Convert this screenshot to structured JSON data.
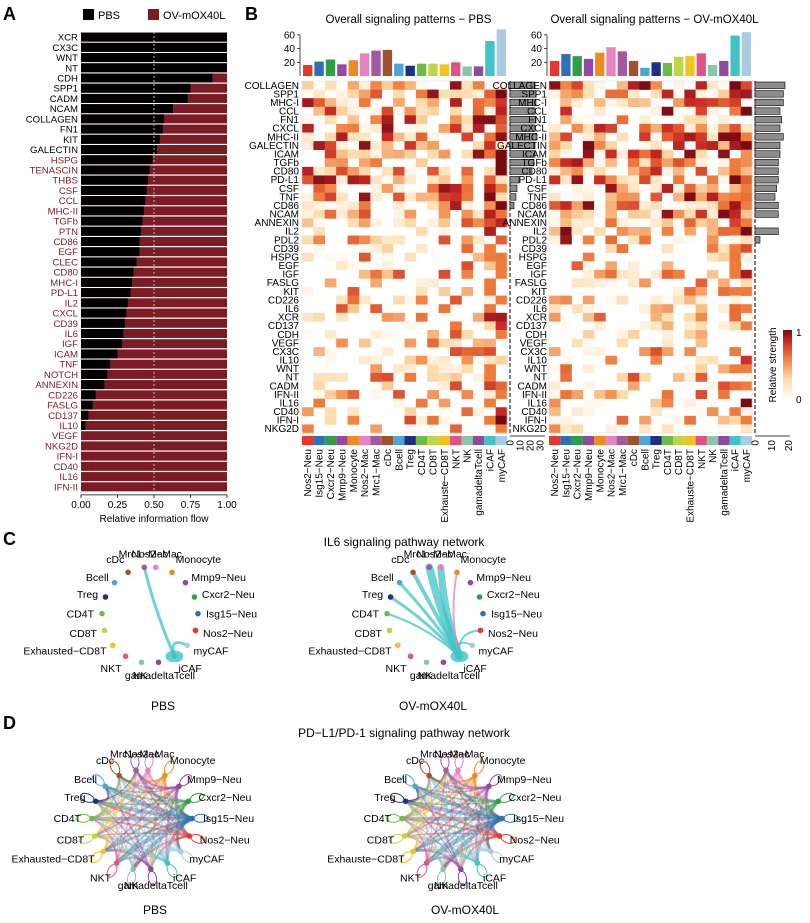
{
  "panelA": {
    "letter": "A",
    "legend": [
      {
        "label": "PBS",
        "color": "#000000"
      },
      {
        "label": "OV-mOX40L",
        "color": "#7b1c24"
      }
    ],
    "rows": [
      {
        "name": "XCR",
        "pbs": 1.0,
        "pbsLabel": true
      },
      {
        "name": "CX3C",
        "pbs": 1.0,
        "pbsLabel": true
      },
      {
        "name": "WNT",
        "pbs": 1.0,
        "pbsLabel": true
      },
      {
        "name": "NT",
        "pbs": 1.0,
        "pbsLabel": true
      },
      {
        "name": "CDH",
        "pbs": 0.9,
        "pbsLabel": true
      },
      {
        "name": "SPP1",
        "pbs": 0.75,
        "pbsLabel": true
      },
      {
        "name": "CADM",
        "pbs": 0.73,
        "pbsLabel": true
      },
      {
        "name": "NCAM",
        "pbs": 0.63,
        "pbsLabel": true
      },
      {
        "name": "COLLAGEN",
        "pbs": 0.57,
        "pbsLabel": true
      },
      {
        "name": "FN1",
        "pbs": 0.56,
        "pbsLabel": true
      },
      {
        "name": "KIT",
        "pbs": 0.54,
        "pbsLabel": true
      },
      {
        "name": "GALECTIN",
        "pbs": 0.52,
        "pbsLabel": true
      },
      {
        "name": "HSPG",
        "pbs": 0.49,
        "pbsLabel": false
      },
      {
        "name": "TENASCIN",
        "pbs": 0.47,
        "pbsLabel": false
      },
      {
        "name": "THBS",
        "pbs": 0.46,
        "pbsLabel": false
      },
      {
        "name": "CSF",
        "pbs": 0.45,
        "pbsLabel": false
      },
      {
        "name": "CCL",
        "pbs": 0.44,
        "pbsLabel": false
      },
      {
        "name": "MHC-II",
        "pbs": 0.43,
        "pbsLabel": false
      },
      {
        "name": "TGFb",
        "pbs": 0.42,
        "pbsLabel": false
      },
      {
        "name": "PTN",
        "pbs": 0.41,
        "pbsLabel": false
      },
      {
        "name": "CD86",
        "pbs": 0.4,
        "pbsLabel": false
      },
      {
        "name": "EGF",
        "pbs": 0.4,
        "pbsLabel": false
      },
      {
        "name": "CLEC",
        "pbs": 0.38,
        "pbsLabel": false
      },
      {
        "name": "CD80",
        "pbs": 0.36,
        "pbsLabel": false
      },
      {
        "name": "MHC-I",
        "pbs": 0.35,
        "pbsLabel": false
      },
      {
        "name": "PD-L1",
        "pbs": 0.34,
        "pbsLabel": false
      },
      {
        "name": "IL2",
        "pbs": 0.32,
        "pbsLabel": false
      },
      {
        "name": "CXCL",
        "pbs": 0.31,
        "pbsLabel": false
      },
      {
        "name": "CD39",
        "pbs": 0.3,
        "pbsLabel": false
      },
      {
        "name": "IL6",
        "pbs": 0.29,
        "pbsLabel": false
      },
      {
        "name": "IGF",
        "pbs": 0.28,
        "pbsLabel": false
      },
      {
        "name": "ICAM",
        "pbs": 0.25,
        "pbsLabel": false
      },
      {
        "name": "TNF",
        "pbs": 0.2,
        "pbsLabel": false
      },
      {
        "name": "NOTCH",
        "pbs": 0.18,
        "pbsLabel": false
      },
      {
        "name": "ANNEXIN",
        "pbs": 0.16,
        "pbsLabel": false
      },
      {
        "name": "CD226",
        "pbs": 0.1,
        "pbsLabel": false
      },
      {
        "name": "FASLG",
        "pbs": 0.08,
        "pbsLabel": false
      },
      {
        "name": "CD137",
        "pbs": 0.05,
        "pbsLabel": false
      },
      {
        "name": "IL10",
        "pbs": 0.03,
        "pbsLabel": false
      },
      {
        "name": "VEGF",
        "pbs": 0.0,
        "pbsLabel": false
      },
      {
        "name": "NKG2D",
        "pbs": 0.0,
        "pbsLabel": false
      },
      {
        "name": "IFN-I",
        "pbs": 0.0,
        "pbsLabel": false
      },
      {
        "name": "CD40",
        "pbs": 0.0,
        "pbsLabel": false
      },
      {
        "name": "IL16",
        "pbs": 0.0,
        "pbsLabel": false
      },
      {
        "name": "IFN-II",
        "pbs": 0.0,
        "pbsLabel": false
      }
    ],
    "xticks": [
      "0.00",
      "0.25",
      "0.50",
      "0.75",
      "1.00"
    ],
    "xlabel": "Relative information flow"
  },
  "panelB": {
    "letter": "B",
    "titles": [
      "Overall signaling patterns − PBS",
      "Overall signaling patterns − OV-mOX40L"
    ],
    "pathways": [
      "COLLAGEN",
      "SPP1",
      "MHC-I",
      "CCL",
      "FN1",
      "CXCL",
      "MHC-II",
      "GALECTIN",
      "ICAM",
      "TGFb",
      "CD80",
      "PD-L1",
      "CSF",
      "TNF",
      "CD86",
      "NCAM",
      "ANNEXIN",
      "IL2",
      "PDL2",
      "CD39",
      "HSPG",
      "EGF",
      "IGF",
      "FASLG",
      "KIT",
      "CD226",
      "IL6",
      "XCR",
      "CD137",
      "CDH",
      "VEGF",
      "CX3C",
      "IL10",
      "WNT",
      "NT",
      "CADM",
      "IFN-II",
      "IL16",
      "CD40",
      "IFN-I",
      "NKG2D"
    ],
    "cellsPBS": [
      "Nos2−Neu",
      "Isg15−Neu",
      "Cxcr2−Neu",
      "Mmp9−Neu",
      "Monocyte",
      "Nos2−Mac",
      "Mrc1−Mac",
      "cDc",
      "Bcell",
      "Treg",
      "CD4T",
      "CD8T",
      "Exhauste−CD8T",
      "NKT",
      "NK",
      "gamadeltaTcell",
      "iCAF",
      "myCAF"
    ],
    "cellsOV": [
      "Nos2−Neu",
      "Isg15−Neu",
      "Cxcr2−Neu",
      "Mmp9−Neu",
      "Monocyte",
      "Nos2−Mac",
      "Mrc1−Mac",
      "cDc",
      "Bcell",
      "Treg",
      "CD4T",
      "CD8T",
      "Exhauste−CD8T",
      "NKT",
      "NK",
      "gamadeltaTcell",
      "iCAF",
      "myCAF"
    ],
    "cellColors": [
      "#e8362d",
      "#2f6fb3",
      "#2e9e48",
      "#9447a3",
      "#f08a1f",
      "#e882c0",
      "#a4589e",
      "#a0522d",
      "#4da6d8",
      "#1f2f86",
      "#6cbd45",
      "#bfd548",
      "#f3c21e",
      "#e25286",
      "#87c6a8",
      "#8f4a9e",
      "#40c3c4",
      "#a9cce3"
    ],
    "topBarsPBS": [
      16,
      21,
      24,
      17,
      23,
      33,
      37,
      38,
      18,
      15,
      18,
      18,
      17,
      20,
      14,
      14,
      51,
      68
    ],
    "topBarsOV": [
      22,
      32,
      29,
      25,
      34,
      42,
      36,
      22,
      12,
      20,
      19,
      28,
      29,
      33,
      16,
      22,
      59,
      64
    ],
    "topTicks": [
      "20",
      "40",
      "60"
    ],
    "topMax": 70,
    "rightPBS": [
      25,
      26,
      26,
      25,
      26,
      25,
      27,
      25,
      25,
      24,
      22,
      9,
      7,
      6,
      4,
      0,
      0,
      0,
      0,
      0,
      0,
      0,
      0,
      0,
      0,
      0,
      0,
      0,
      0,
      0,
      0,
      0,
      0,
      0,
      0,
      0,
      0,
      0,
      0,
      0,
      0
    ],
    "rightOV": [
      18,
      17,
      17,
      15,
      16,
      15,
      17,
      15,
      15,
      14,
      14,
      14,
      13,
      12,
      14,
      14,
      0,
      14,
      3,
      0,
      0,
      0,
      0,
      0,
      0,
      0,
      0,
      0,
      0,
      0,
      0,
      0,
      0,
      0,
      0,
      0,
      0,
      0,
      0,
      0,
      0
    ],
    "rightTicksPBS": [
      "0",
      "10",
      "20",
      "30"
    ],
    "rightMaxPBS": 35,
    "rightTicksOV": [
      "0",
      "10",
      "20"
    ],
    "rightMaxOV": 21,
    "colorbar": {
      "label": "Relative strength",
      "max": "1",
      "min": "0"
    }
  },
  "panelC": {
    "letter": "C",
    "title": "IL6 signaling pathway network",
    "left": {
      "caption": "PBS",
      "labels": [
        "Nos2−Mac",
        "Monocyte",
        "Mmp9−Neu",
        "Cxcr2−Neu",
        "Isg15−Neu",
        "Nos2−Neu",
        "myCAF",
        "iCAF",
        "gamadeltaTcell",
        "NK",
        "NKT",
        "Exhausted−CD8T",
        "CD8T",
        "CD4T",
        "Treg",
        "Bcell",
        "cDc",
        "Mrc1−Mac"
      ]
    },
    "right": {
      "caption": "OV-mOX40L",
      "labels": [
        "Nos2−Mac",
        "Monocyte",
        "Mmp9−Neu",
        "Cxcr2−Neu",
        "Isg15−Neu",
        "Nos2−Neu",
        "myCAF",
        "iCAF",
        "gamadeltaTcell",
        "NK",
        "NKT",
        "Exhausted−CD8T",
        "CD8T",
        "CD4T",
        "Treg",
        "Bcell",
        "cDc",
        "Mrc1−Mac"
      ]
    }
  },
  "panelD": {
    "letter": "D",
    "title": "PD−L1/PD-1 signaling pathway network",
    "left": {
      "caption": "PBS",
      "labels": [
        "Nos2−Mac",
        "Monocyte",
        "Mmp9−Neu",
        "Cxcr2−Neu",
        "Isg15−Neu",
        "Nos2−Neu",
        "myCAF",
        "iCAF",
        "gamadeltaTcell",
        "NK",
        "NKT",
        "Exhausted−CD8T",
        "CD8T",
        "CD4T",
        "Treg",
        "Bcell",
        "cDc",
        "Mrc1−Mac"
      ]
    },
    "right": {
      "caption": "OV-mOX40L",
      "labels": [
        "Nos2−Mac",
        "Monocyte",
        "Mmp9−Neu",
        "Cxcr2−Neu",
        "Isg15−Neu",
        "Nos2−Neu",
        "myCAF",
        "iCAF",
        "gamadeltaTcell",
        "NK",
        "NKT",
        "Exhauste−CD8T",
        "CD8T",
        "CD4T",
        "Treg",
        "Bcell",
        "cDc",
        "Mrc1−Mac"
      ]
    }
  },
  "colors": {
    "pbs": "#000000",
    "ov": "#7b1c24",
    "axisText": "#000000",
    "redLabel": "#7b1c24"
  }
}
